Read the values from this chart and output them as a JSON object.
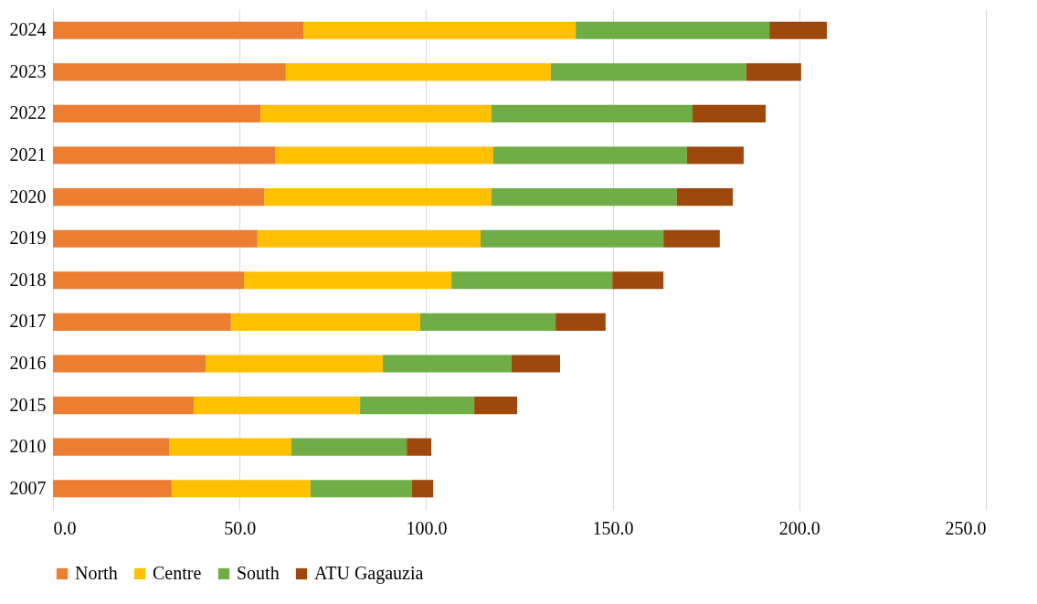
{
  "chart_data": {
    "type": "bar",
    "orientation": "horizontal",
    "stacked": true,
    "categories": [
      "2024",
      "2023",
      "2022",
      "2021",
      "2020",
      "2019",
      "2018",
      "2017",
      "2016",
      "2015",
      "2010",
      "2007"
    ],
    "series": [
      {
        "name": "North",
        "color": "#ed7d31",
        "values": [
          67.1,
          62.4,
          55.6,
          59.5,
          56.6,
          54.8,
          51.2,
          47.7,
          40.9,
          37.7,
          31.1,
          31.8
        ]
      },
      {
        "name": "Centre",
        "color": "#ffc000",
        "values": [
          73.0,
          71.0,
          61.9,
          58.5,
          60.9,
          59.8,
          55.6,
          50.7,
          47.5,
          44.6,
          32.8,
          37.2
        ]
      },
      {
        "name": "South",
        "color": "#70ad47",
        "values": [
          51.9,
          52.4,
          53.9,
          51.9,
          49.7,
          49.0,
          43.1,
          36.3,
          34.5,
          30.6,
          30.9,
          27.2
        ]
      },
      {
        "name": "ATU Gagauzia",
        "color": "#9e480e",
        "values": [
          15.4,
          14.7,
          19.6,
          15.2,
          15.0,
          15.1,
          13.7,
          13.4,
          13.0,
          11.5,
          6.6,
          5.7
        ]
      }
    ],
    "xlim": [
      0,
      250
    ],
    "xticks": [
      {
        "value": 0,
        "label": "0.0"
      },
      {
        "value": 50,
        "label": "50.0"
      },
      {
        "value": 100,
        "label": "100.0"
      },
      {
        "value": 150,
        "label": "150.0"
      },
      {
        "value": 200,
        "label": "200.0"
      },
      {
        "value": 250,
        "label": "250.0"
      }
    ],
    "grid": "x",
    "legend": "bottom"
  }
}
